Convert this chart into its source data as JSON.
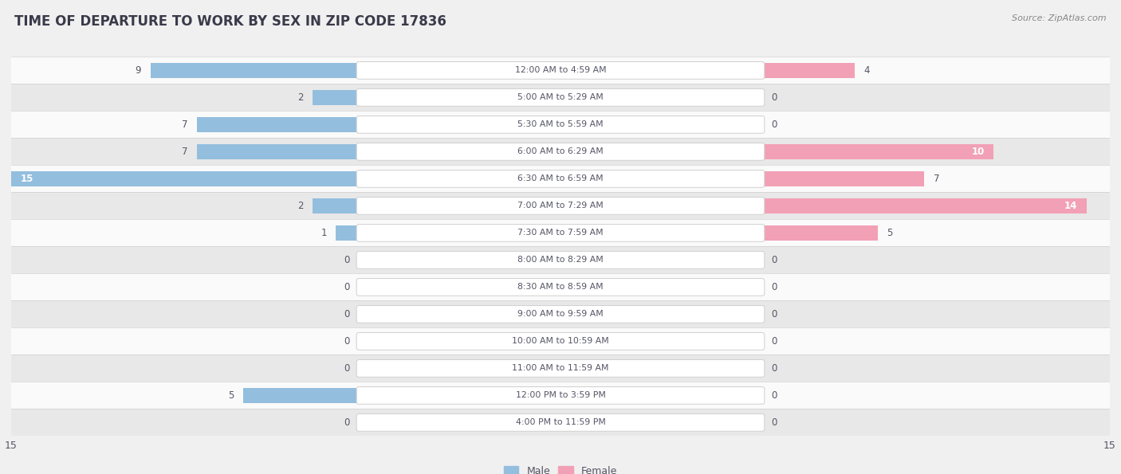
{
  "title": "TIME OF DEPARTURE TO WORK BY SEX IN ZIP CODE 17836",
  "source": "Source: ZipAtlas.com",
  "categories": [
    "12:00 AM to 4:59 AM",
    "5:00 AM to 5:29 AM",
    "5:30 AM to 5:59 AM",
    "6:00 AM to 6:29 AM",
    "6:30 AM to 6:59 AM",
    "7:00 AM to 7:29 AM",
    "7:30 AM to 7:59 AM",
    "8:00 AM to 8:29 AM",
    "8:30 AM to 8:59 AM",
    "9:00 AM to 9:59 AM",
    "10:00 AM to 10:59 AM",
    "11:00 AM to 11:59 AM",
    "12:00 PM to 3:59 PM",
    "4:00 PM to 11:59 PM"
  ],
  "male_values": [
    9,
    2,
    7,
    7,
    15,
    2,
    1,
    0,
    0,
    0,
    0,
    0,
    5,
    0
  ],
  "female_values": [
    4,
    0,
    0,
    10,
    7,
    14,
    5,
    0,
    0,
    0,
    0,
    0,
    0,
    0
  ],
  "male_color": "#93bede",
  "female_color": "#f2a0b5",
  "male_bright": "#6a9ecf",
  "female_bright": "#e8607a",
  "text_dark": "#555566",
  "title_color": "#3a3a4a",
  "bg_color": "#f0f0f0",
  "row_light": "#fafafa",
  "row_dark": "#e8e8e8",
  "x_max": 15,
  "legend_male": "Male",
  "legend_female": "Female"
}
